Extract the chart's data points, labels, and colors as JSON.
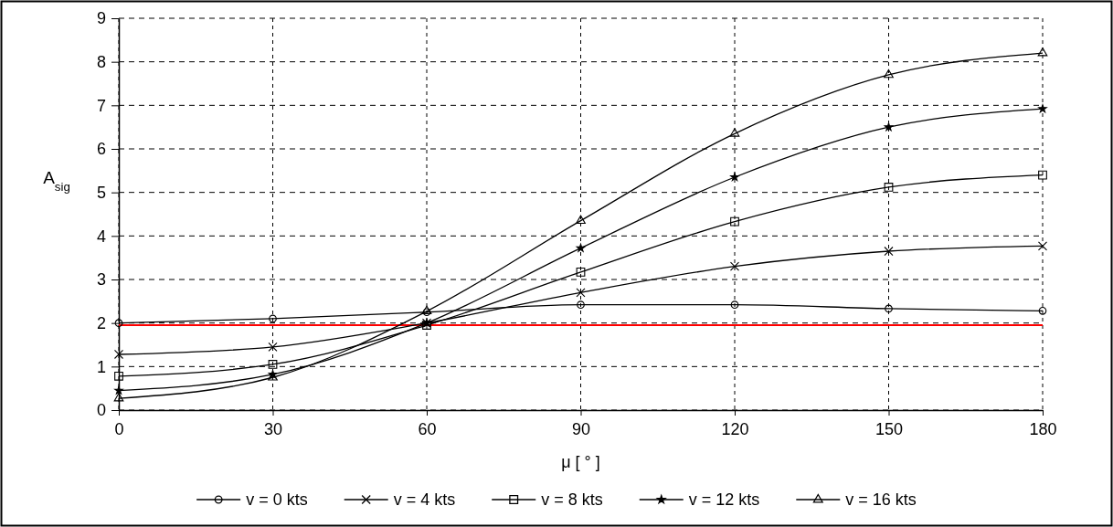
{
  "chart_data": {
    "type": "line",
    "xlabel": "μ [ ° ]",
    "ylabel": "A$_{sig}$",
    "x": [
      0,
      30,
      60,
      90,
      120,
      150,
      180
    ],
    "xlim": [
      0,
      180
    ],
    "xticks": [
      0,
      30,
      60,
      90,
      120,
      150,
      180
    ],
    "ylim": [
      0,
      9
    ],
    "yticks": [
      0,
      1,
      2,
      3,
      4,
      5,
      6,
      7,
      8,
      9
    ],
    "grid": true,
    "legend": "bottom",
    "series": [
      {
        "name": "v = 0 kts",
        "color": "#000000",
        "marker": "circle",
        "values": [
          2.0,
          2.1,
          2.25,
          2.42,
          2.42,
          2.33,
          2.28
        ]
      },
      {
        "name": "v = 4 kts",
        "color": "#000000",
        "marker": "cross",
        "values": [
          1.28,
          1.45,
          2.0,
          2.7,
          3.3,
          3.65,
          3.77
        ]
      },
      {
        "name": "v = 8 kts",
        "color": "#000000",
        "marker": "square",
        "values": [
          0.78,
          1.05,
          1.95,
          3.17,
          4.33,
          5.12,
          5.4
        ]
      },
      {
        "name": "v = 12 kts",
        "color": "#000000",
        "marker": "star",
        "values": [
          0.45,
          0.82,
          2.0,
          3.72,
          5.35,
          6.5,
          6.92
        ]
      },
      {
        "name": "v = 16 kts",
        "color": "#000000",
        "marker": "triangle",
        "values": [
          0.27,
          0.75,
          2.27,
          4.35,
          6.35,
          7.7,
          8.2
        ]
      }
    ],
    "ref_lines": [
      {
        "axis": "y",
        "value": 1.95,
        "color": "#ff0000"
      }
    ]
  }
}
